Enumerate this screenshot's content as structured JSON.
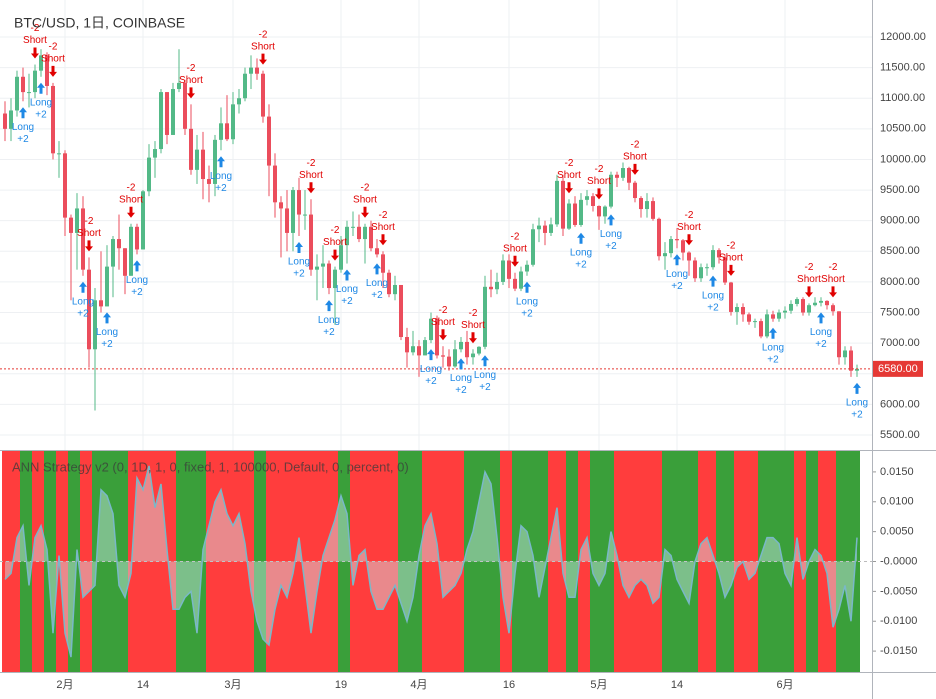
{
  "chart_data": [
    {
      "type": "candlestick",
      "title": "BTC/USD, 1日, COINBASE",
      "open": [
        10750,
        10500,
        10800,
        11350,
        11100,
        11100,
        11450,
        11700,
        11200,
        10100,
        10100,
        9050,
        8800,
        9200,
        8200,
        6900,
        7700,
        7600,
        8250,
        8700,
        8550,
        8100,
        8900,
        8530,
        9480,
        10030,
        10170,
        11100,
        10400,
        11150,
        11250,
        10500,
        9830,
        10160,
        9680,
        9600,
        10320,
        10590,
        10330,
        10900,
        11000,
        11400,
        11500,
        11400,
        10700,
        9900,
        9300,
        9200,
        8800,
        9500,
        9100,
        9100,
        8200,
        8250,
        8300,
        7900,
        8200,
        8600,
        8900,
        8900,
        8700,
        8900,
        8550,
        8450,
        8150,
        7800,
        7950,
        7100,
        6850,
        6950,
        6800,
        7050,
        7400,
        6800,
        6780,
        6620,
        6900,
        7020,
        6770,
        6830,
        6940,
        7920,
        7880,
        8000,
        8350,
        8050,
        7890,
        8170,
        8280,
        8860,
        8920,
        8800,
        8940,
        9650,
        8870,
        9280,
        8930,
        9340,
        9400,
        9240,
        9070,
        9230,
        9750,
        9700,
        9860,
        9620,
        9370,
        9190,
        9320,
        9030,
        8420,
        8470,
        8700,
        8680,
        8480,
        8350,
        8060,
        8240,
        8240,
        8520,
        8400,
        7990,
        7510,
        7590,
        7470,
        7350,
        7360,
        7110,
        7470,
        7400,
        7500,
        7530,
        7640,
        7720,
        7500,
        7620,
        7660,
        7690,
        7620,
        7520,
        6770,
        6880,
        6550
      ],
      "high": [
        10950,
        11000,
        11450,
        11500,
        11400,
        11550,
        11800,
        11750,
        11250,
        10300,
        10150,
        9100,
        9450,
        9400,
        8400,
        7900,
        8500,
        8600,
        8750,
        9100,
        8550,
        8950,
        8950,
        9500,
        10250,
        10300,
        11150,
        11100,
        11250,
        11800,
        11300,
        10900,
        10400,
        10450,
        9900,
        10400,
        10850,
        11050,
        11100,
        11150,
        11500,
        11700,
        11650,
        11450,
        10900,
        10100,
        9400,
        9500,
        9550,
        9700,
        9500,
        9350,
        8450,
        8600,
        8350,
        8250,
        8750,
        9000,
        9150,
        9100,
        8950,
        9000,
        8700,
        8500,
        8200,
        8100,
        7950,
        7250,
        7200,
        7050,
        7100,
        7500,
        7450,
        6950,
        6900,
        7050,
        7100,
        7200,
        6900,
        6950,
        8100,
        8200,
        8150,
        8450,
        8450,
        8150,
        8250,
        8350,
        8950,
        9050,
        9000,
        9050,
        9750,
        9750,
        9350,
        9400,
        9450,
        9500,
        9450,
        9250,
        9250,
        9800,
        9800,
        9950,
        9880,
        9650,
        9400,
        9450,
        9380,
        9050,
        8650,
        8750,
        8880,
        8700,
        8500,
        8400,
        8300,
        8300,
        8600,
        8550,
        8450,
        8000,
        7650,
        7650,
        7500,
        7400,
        7400,
        7550,
        7530,
        7550,
        7600,
        7700,
        7750,
        7750,
        7650,
        7750,
        7750,
        7700,
        7650,
        7520,
        6950,
        6950,
        6650
      ],
      "low": [
        10300,
        10300,
        10700,
        10950,
        10850,
        11000,
        11350,
        11050,
        10000,
        9700,
        8750,
        7700,
        8200,
        8100,
        6600,
        5900,
        7500,
        7600,
        7750,
        8200,
        7800,
        8100,
        8450,
        8530,
        9400,
        9700,
        10100,
        10250,
        10400,
        11100,
        10400,
        9750,
        9600,
        9350,
        9300,
        9400,
        10150,
        10300,
        10250,
        10750,
        10950,
        11150,
        11300,
        10600,
        9400,
        9050,
        8400,
        8500,
        8500,
        8750,
        8850,
        8100,
        7700,
        7900,
        7800,
        7300,
        8150,
        8300,
        8750,
        8650,
        8300,
        8500,
        8400,
        7900,
        7750,
        7700,
        7050,
        6600,
        6800,
        6450,
        6800,
        7000,
        6750,
        6600,
        6550,
        6600,
        6850,
        6650,
        6650,
        6800,
        6900,
        7750,
        7800,
        7950,
        7900,
        7850,
        7850,
        8100,
        8250,
        8650,
        8600,
        8750,
        8900,
        8750,
        8850,
        8900,
        8900,
        9250,
        9150,
        8850,
        8950,
        9200,
        9550,
        9650,
        9500,
        9300,
        9050,
        9050,
        9000,
        8350,
        8200,
        8400,
        8550,
        8350,
        8100,
        8000,
        8000,
        8100,
        8200,
        8300,
        7950,
        7450,
        7300,
        7350,
        7300,
        7250,
        7080,
        7080,
        7350,
        7350,
        7400,
        7480,
        7600,
        7450,
        7450,
        7600,
        7600,
        7550,
        7450,
        6650,
        6650,
        6450,
        6450
      ],
      "close": [
        10500,
        10800,
        11350,
        11100,
        11100,
        11450,
        11700,
        11200,
        10100,
        10100,
        9050,
        8800,
        9200,
        8200,
        6900,
        7700,
        7600,
        8250,
        8700,
        8550,
        8100,
        8900,
        8530,
        9480,
        10030,
        10170,
        11100,
        10400,
        11150,
        11250,
        10500,
        9830,
        10160,
        9680,
        9600,
        10320,
        10590,
        10330,
        10900,
        11000,
        11400,
        11500,
        11400,
        10700,
        9900,
        9300,
        9200,
        8800,
        9500,
        9100,
        9100,
        8200,
        8250,
        8300,
        7900,
        8200,
        8600,
        8900,
        8900,
        8700,
        8900,
        8550,
        8450,
        8150,
        7800,
        7950,
        7100,
        6850,
        6950,
        6800,
        7050,
        7400,
        6800,
        6780,
        6620,
        6900,
        7020,
        6770,
        6830,
        6940,
        7920,
        7880,
        8000,
        8350,
        8050,
        7890,
        8170,
        8280,
        8860,
        8920,
        8800,
        8940,
        9650,
        8870,
        9280,
        8930,
        9340,
        9400,
        9240,
        9070,
        9230,
        9750,
        9700,
        9860,
        9620,
        9370,
        9190,
        9320,
        9030,
        8420,
        8470,
        8700,
        8680,
        8480,
        8350,
        8060,
        8240,
        8240,
        8520,
        8400,
        7990,
        7510,
        7590,
        7470,
        7350,
        7360,
        7110,
        7470,
        7400,
        7500,
        7530,
        7640,
        7720,
        7500,
        7620,
        7660,
        7690,
        7620,
        7520,
        6770,
        6880,
        6550,
        6580
      ],
      "up_color": "#53b987",
      "down_color": "#eb4d5c",
      "xlim": [
        -0.8333,
        144.5
      ],
      "ylim": [
        5255,
        12604
      ],
      "xticks": [
        {
          "value": 10,
          "label": "2月"
        },
        {
          "value": 23,
          "label": "14"
        },
        {
          "value": 38,
          "label": "3月"
        },
        {
          "value": 56,
          "label": "19"
        },
        {
          "value": 69,
          "label": "4月"
        },
        {
          "value": 84,
          "label": "16"
        },
        {
          "value": 99,
          "label": "5月"
        },
        {
          "value": 112,
          "label": "14"
        },
        {
          "value": 130,
          "label": "6月"
        }
      ],
      "yticks": [
        {
          "value": 5500,
          "label": "5500.00"
        },
        {
          "value": 6000,
          "label": "6000.00"
        },
        {
          "value": 6500,
          "label": "6500.00"
        },
        {
          "value": 7000,
          "label": "7000.00"
        },
        {
          "value": 7500,
          "label": "7500.00"
        },
        {
          "value": 8000,
          "label": "8000.00"
        },
        {
          "value": 8500,
          "label": "8500.00"
        },
        {
          "value": 9000,
          "label": "9000.00"
        },
        {
          "value": 9500,
          "label": "9500.00"
        },
        {
          "value": 10000,
          "label": "10000.00"
        },
        {
          "value": 10500,
          "label": "10500.00"
        },
        {
          "value": 11000,
          "label": "11000.00"
        },
        {
          "value": 11500,
          "label": "11500.00"
        },
        {
          "value": 12000,
          "label": "12000.00"
        }
      ],
      "grid": true,
      "last_value": 6580,
      "last_label": "6580.00",
      "last_color": "#e53935",
      "long_signals": {
        "label": "Long",
        "qty": "+2",
        "color": "#1e88e5",
        "x": [
          3,
          6,
          13,
          17,
          22,
          36,
          49,
          54,
          57,
          62,
          71,
          76,
          80,
          87,
          96,
          101,
          112,
          118,
          128,
          136,
          142
        ]
      },
      "short_signals": {
        "label": "Short",
        "qty": "-2",
        "color": "#e00000",
        "x": [
          5,
          8,
          14,
          21,
          31,
          43,
          51,
          55,
          60,
          63,
          73,
          78,
          85,
          94,
          99,
          105,
          114,
          121,
          134,
          138
        ]
      }
    },
    {
      "type": "area",
      "title": "ANN Strategy v2 (0, 1D, 1, 0, fixed, 1, 100000, Default, 0, percent, 0)",
      "values": [
        -0.003,
        -0.002,
        0.004,
        0.006,
        -0.004,
        0.004,
        0.006,
        0.002,
        -0.012,
        0.001,
        -0.012,
        -0.016,
        0.002,
        -0.006,
        -0.005,
        -0.004,
        0.012,
        0.011,
        0.008,
        -0.004,
        -0.006,
        -0.002,
        0.014,
        0.012,
        0.016,
        0.009,
        0.013,
        0.002,
        -0.008,
        -0.008,
        -0.006,
        -0.005,
        -0.012,
        0.002,
        0.006,
        0.01,
        0.012,
        0.008,
        0.006,
        0.008,
        0.003,
        -0.005,
        -0.01,
        -0.013,
        -0.014,
        -0.008,
        -0.004,
        -0.006,
        -0.002,
        0.004,
        -0.004,
        -0.012,
        -0.005,
        0.001,
        0.004,
        0.007,
        0.011,
        0.008,
        -0.004,
        0.001,
        0.002,
        -0.005,
        -0.008,
        -0.008,
        -0.006,
        -0.004,
        -0.007,
        -0.01,
        -0.006,
        0.001,
        0.006,
        0.008,
        0.003,
        -0.006,
        -0.005,
        -0.004,
        -0.002,
        0.002,
        0.005,
        0.01,
        0.015,
        0.013,
        0.004,
        -0.006,
        -0.012,
        -0.002,
        0.006,
        0.005,
        0.001,
        -0.006,
        -0.001,
        0.004,
        0.009,
        -0.002,
        -0.006,
        -0.006,
        0.002,
        0.004,
        -0.002,
        -0.004,
        -0.002,
        0.005,
        0.001,
        -0.004,
        -0.006,
        -0.004,
        -0.003,
        -0.004,
        -0.007,
        -0.006,
        0.002,
        0.001,
        -0.003,
        -0.005,
        -0.007,
        0,
        0.003,
        0.004,
        0.001,
        -0.002,
        -0.006,
        -0.004,
        -0.001,
        0,
        -0.003,
        -0.002,
        0.001,
        0.004,
        0.004,
        0.003,
        -0.002,
        -0.004,
        0.004,
        -0.003,
        0,
        0.002,
        0.001,
        -0.002,
        -0.011,
        -0.008,
        -0.004,
        -0.01,
        0.004
      ],
      "color": "#7ab8c8",
      "xlim": [
        -0.8333,
        144.5
      ],
      "ylim": [
        -0.0185,
        0.0185
      ],
      "yticks": [
        {
          "value": -0.015,
          "label": "-0.0150"
        },
        {
          "value": -0.01,
          "label": "-0.0100"
        },
        {
          "value": -0.005,
          "label": "-0.0050"
        },
        {
          "value": 0,
          "label": "-0.0000"
        },
        {
          "value": 0.005,
          "label": "0.0050"
        },
        {
          "value": 0.01,
          "label": "0.0100"
        },
        {
          "value": 0.015,
          "label": "0.0150"
        }
      ],
      "short_color": "#ff3333",
      "long_color": "#2f9a2f",
      "short_bands": [
        [
          0,
          2
        ],
        [
          5,
          6
        ],
        [
          9,
          10
        ],
        [
          13,
          14
        ],
        [
          21,
          28
        ],
        [
          34,
          41
        ],
        [
          44,
          55
        ],
        [
          58,
          65
        ],
        [
          70,
          76
        ],
        [
          83,
          84
        ],
        [
          91,
          93
        ],
        [
          96,
          97
        ],
        [
          102,
          109
        ],
        [
          116,
          118
        ],
        [
          122,
          125
        ],
        [
          132,
          133
        ],
        [
          136,
          138
        ]
      ],
      "long_bands": [
        [
          3,
          4
        ],
        [
          7,
          8
        ],
        [
          11,
          12
        ],
        [
          15,
          20
        ],
        [
          29,
          33
        ],
        [
          42,
          43
        ],
        [
          56,
          57
        ],
        [
          66,
          69
        ],
        [
          77,
          82
        ],
        [
          85,
          90
        ],
        [
          94,
          95
        ],
        [
          98,
          101
        ],
        [
          110,
          115
        ],
        [
          119,
          121
        ],
        [
          126,
          131
        ],
        [
          134,
          135
        ],
        [
          139,
          142
        ]
      ]
    }
  ]
}
